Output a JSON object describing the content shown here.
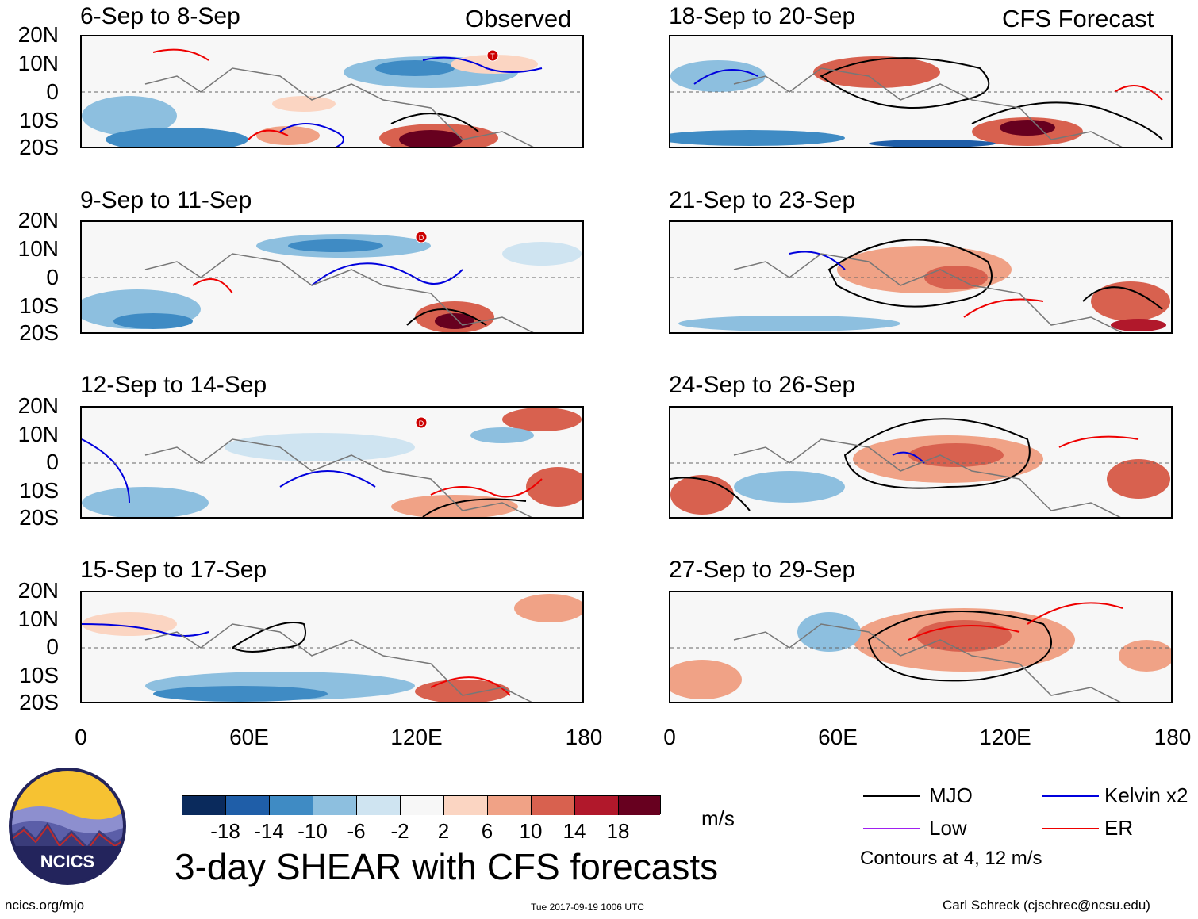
{
  "headers": {
    "left": "Observed",
    "right": "CFS Forecast"
  },
  "lat_labels": [
    "20N",
    "10N",
    "0",
    "10S",
    "20S"
  ],
  "lon_labels": [
    "0",
    "60E",
    "120E",
    "180"
  ],
  "panels": {
    "left": [
      {
        "title": "6-Sep to 8-Sep",
        "storm": "T"
      },
      {
        "title": "9-Sep to 11-Sep",
        "storm": "D"
      },
      {
        "title": "12-Sep to 14-Sep",
        "storm": "D"
      },
      {
        "title": "15-Sep to 17-Sep",
        "storm": ""
      }
    ],
    "right": [
      {
        "title": "18-Sep to 20-Sep"
      },
      {
        "title": "21-Sep to 23-Sep"
      },
      {
        "title": "24-Sep to 26-Sep"
      },
      {
        "title": "27-Sep to 29-Sep"
      }
    ]
  },
  "colorbar": {
    "colors": [
      "#0a2a5c",
      "#1f5ea8",
      "#3f8bc4",
      "#8dbfdf",
      "#cfe4f1",
      "#f7f7f7",
      "#fbd5c2",
      "#f0a286",
      "#d8614f",
      "#b1182b",
      "#67001f"
    ],
    "labels": [
      "-18",
      "-14",
      "-10",
      "-6",
      "-2",
      "2",
      "6",
      "10",
      "14",
      "18"
    ],
    "units": "m/s"
  },
  "legend": {
    "items": [
      {
        "label": "MJO",
        "color": "#000000"
      },
      {
        "label": "Kelvin x2",
        "color": "#0000dd"
      },
      {
        "label": "Low",
        "color": "#a020f0"
      },
      {
        "label": "ER",
        "color": "#ee0000"
      }
    ],
    "contours_note": "Contours at 4, 12 m/s"
  },
  "logo_text": "NCICS",
  "title": "3-day SHEAR with CFS forecasts",
  "footer": {
    "left": "ncics.org/mjo",
    "center": "Tue 2017-09-19 1006 UTC",
    "right": "Carl Schreck (cjschrec@ncsu.edu)"
  }
}
